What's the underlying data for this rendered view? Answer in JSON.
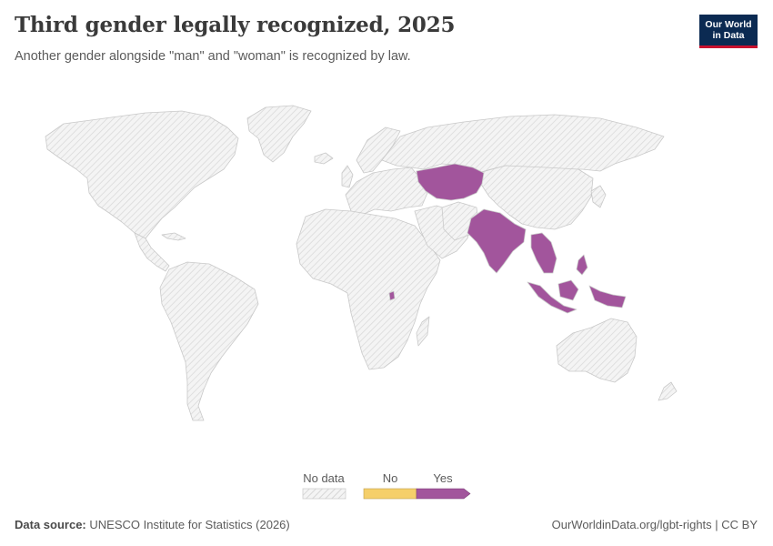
{
  "header": {
    "title": "Third gender legally recognized, 2025",
    "subtitle": "Another gender alongside \"man\" and \"woman\" is recognized by law."
  },
  "logo": {
    "line1": "Our World",
    "line2": "in Data"
  },
  "map_data": {
    "type": "choropleth",
    "projection": "world",
    "categories": [
      {
        "label": "No data",
        "color": "#e0e0e0",
        "pattern": "hatched"
      },
      {
        "label": "No",
        "color": "#f5cf6a"
      },
      {
        "label": "Yes",
        "color": "#a2559c"
      }
    ],
    "yes_regions": [
      "Kazakhstan",
      "Kyrgyzstan",
      "Tajikistan",
      "Uzbekistan",
      "Turkmenistan",
      "India",
      "Nepal",
      "Bangladesh",
      "Myanmar",
      "Thailand",
      "Cambodia",
      "Laos",
      "Vietnam",
      "Malaysia",
      "Indonesia",
      "Papua New Guinea",
      "Philippines",
      "Burundi"
    ],
    "no_regions": []
  },
  "legend": {
    "no_data": "No data",
    "no": "No",
    "yes": "Yes"
  },
  "footer": {
    "source_label": "Data source:",
    "source": "UNESCO Institute for Statistics (2026)",
    "url": "OurWorldinData.org/lgbt-rights | CC BY"
  },
  "colors": {
    "yes": "#a2559c",
    "no": "#f5cf6a",
    "no_data": "#e0e0e0",
    "border": "#c9c9c9",
    "brand": "#0b2a52",
    "brand_accent": "#c8102e"
  }
}
